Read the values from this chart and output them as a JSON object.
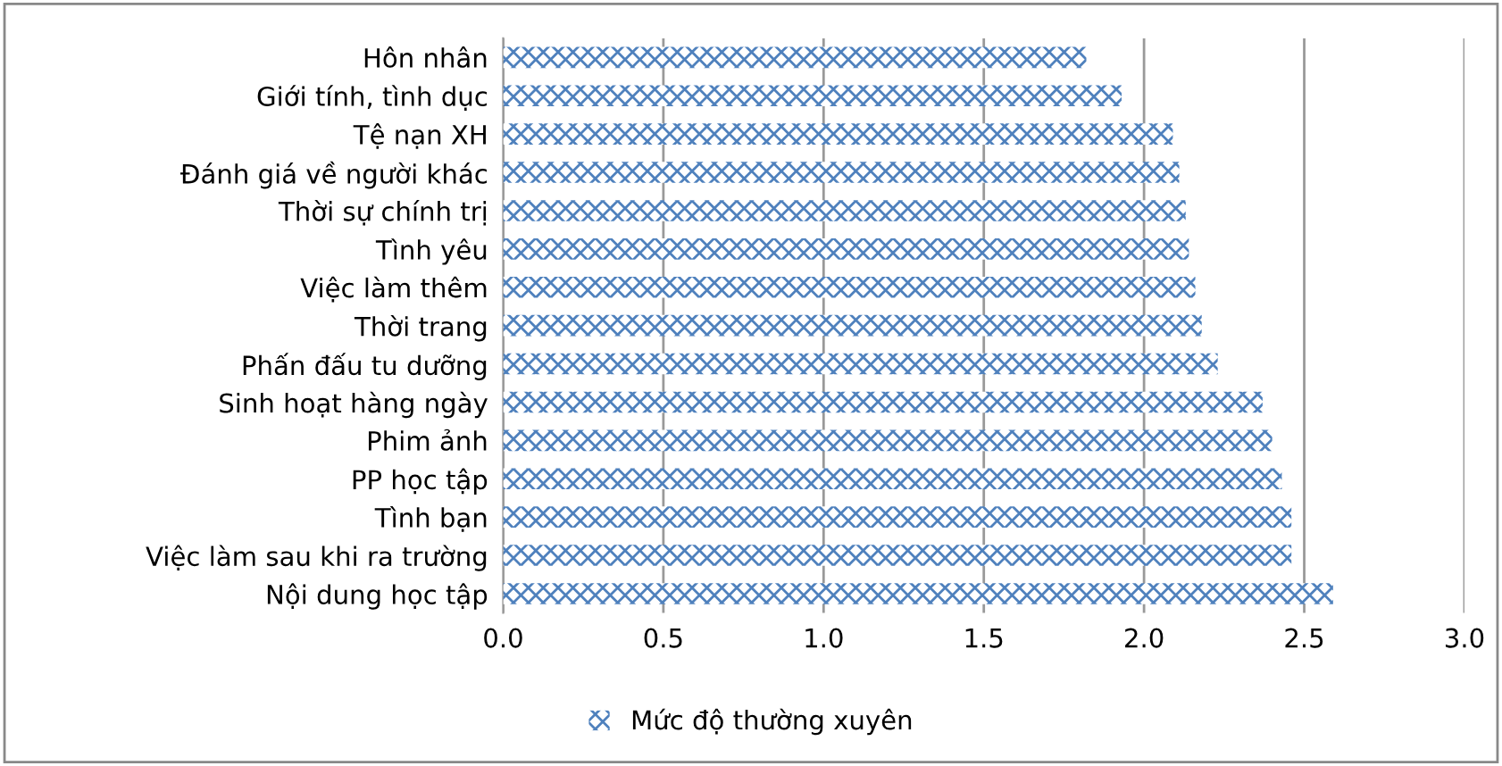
{
  "chart_data": {
    "type": "bar",
    "orientation": "horizontal",
    "categories": [
      "Hôn nhân",
      "Giới tính, tình dục",
      "Tệ nạn XH",
      "Đánh giá về người khác",
      "Thời sự chính trị",
      "Tình yêu",
      "Việc làm thêm",
      "Thời trang",
      "Phấn đấu tu dưỡng",
      "Sinh hoạt hàng ngày",
      "Phim ảnh",
      "PP học tập",
      "Tình bạn",
      "Việc làm sau khi ra trường",
      "Nội dung học tập"
    ],
    "series": [
      {
        "name": "Mức độ thường xuyên",
        "color": "#4f81bd",
        "values": [
          1.82,
          1.93,
          2.09,
          2.11,
          2.13,
          2.14,
          2.16,
          2.18,
          2.23,
          2.37,
          2.4,
          2.43,
          2.46,
          2.46,
          2.59
        ]
      }
    ],
    "xlim": [
      0,
      3
    ],
    "xticks": [
      {
        "value": 0,
        "label": "0.0"
      },
      {
        "value": 0.5,
        "label": "0.5"
      },
      {
        "value": 1,
        "label": "1.0"
      },
      {
        "value": 1.5,
        "label": "1.5"
      },
      {
        "value": 2,
        "label": "2.0"
      },
      {
        "value": 2.5,
        "label": "2.5"
      },
      {
        "value": 3,
        "label": "3.0"
      }
    ],
    "grid": "x",
    "legend": "bottom"
  }
}
